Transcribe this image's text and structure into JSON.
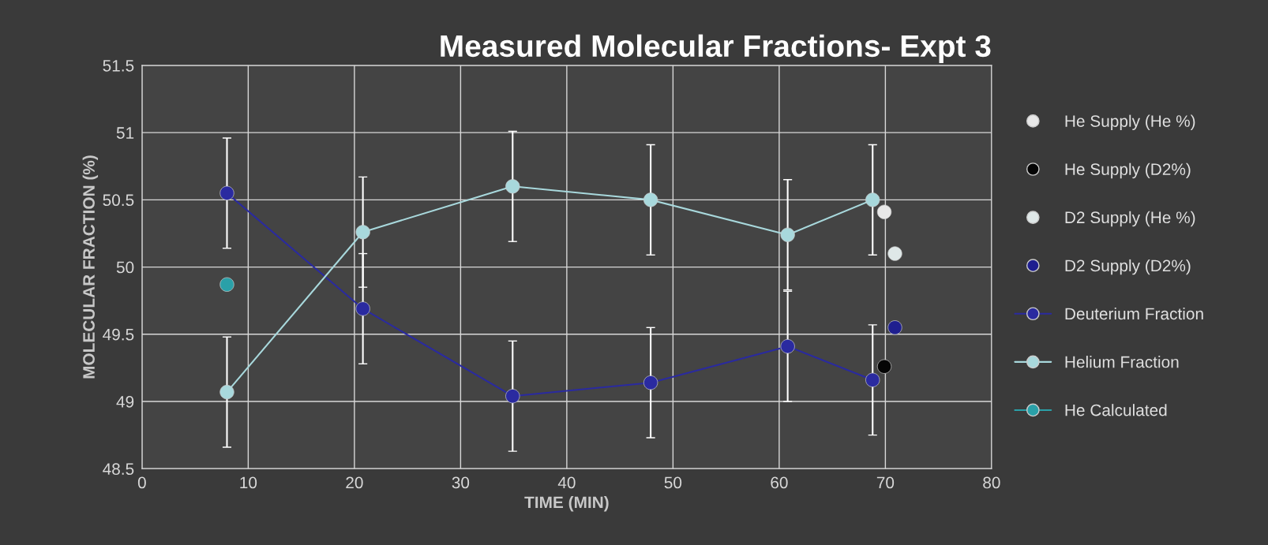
{
  "chart_data": {
    "type": "line",
    "title": "Measured Molecular Fractions- Expt 3",
    "xlabel": "TIME (MIN)",
    "ylabel": "MOLECULAR FRACTION (%)",
    "xlim": [
      0,
      80
    ],
    "xticks": [
      0,
      10,
      20,
      30,
      40,
      50,
      60,
      70,
      80
    ],
    "ylim": [
      48.5,
      51.5
    ],
    "yticks": [
      48.5,
      49,
      49.5,
      50,
      50.5,
      51,
      51.5
    ],
    "grid": true,
    "legend": "right",
    "marker": "circle",
    "series": [
      {
        "name": "He Supply (He %)",
        "type": "scatter",
        "color": "#e8e8e8",
        "x": [
          69.9
        ],
        "values": [
          50.41
        ]
      },
      {
        "name": "He Supply (D2%)",
        "type": "scatter",
        "color": "#050505",
        "x": [
          69.9
        ],
        "values": [
          49.26
        ]
      },
      {
        "name": "D2 Supply (He %)",
        "type": "scatter",
        "color": "#dfe8e8",
        "x": [
          70.9
        ],
        "values": [
          50.1
        ]
      },
      {
        "name": "D2 Supply (D2%)",
        "type": "scatter",
        "color": "#1f1f8f",
        "x": [
          70.9
        ],
        "values": [
          49.55
        ]
      },
      {
        "name": "Deuterium Fraction",
        "color": "#2a2aa0",
        "x": [
          8,
          20.8,
          34.9,
          47.9,
          60.8,
          68.8
        ],
        "values": [
          50.55,
          49.69,
          49.04,
          49.14,
          49.41,
          49.16
        ],
        "errors": [
          0.41,
          0.41,
          0.41,
          0.41,
          0.41,
          0.41
        ]
      },
      {
        "name": "Helium Fraction",
        "color": "#a8d8dc",
        "x": [
          8,
          20.8,
          34.9,
          47.9,
          60.8,
          68.8
        ],
        "values": [
          49.07,
          50.26,
          50.6,
          50.5,
          50.24,
          50.5
        ],
        "errors": [
          0.41,
          0.41,
          0.41,
          0.41,
          0.41,
          0.41
        ]
      },
      {
        "name": "He Calculated",
        "color": "#2aa0a8",
        "x": [
          8
        ],
        "values": [
          49.87
        ]
      }
    ]
  }
}
